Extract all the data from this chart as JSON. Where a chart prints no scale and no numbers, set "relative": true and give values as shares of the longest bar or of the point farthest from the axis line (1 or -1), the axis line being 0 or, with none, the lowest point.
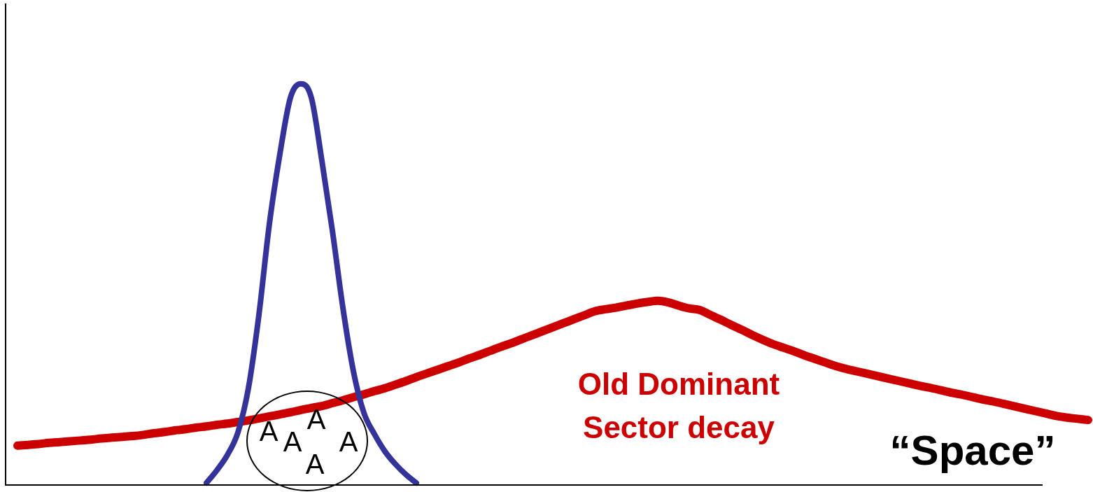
{
  "chart_data": {
    "type": "line",
    "relative": true,
    "xlabel": "“Space”",
    "annotations": [
      "A",
      "A",
      "A",
      "A",
      "A"
    ],
    "categories": [
      null,
      null,
      null,
      null,
      null,
      null,
      null,
      null,
      null,
      null,
      null,
      null,
      null,
      null,
      null,
      null,
      null,
      null,
      null,
      null,
      null,
      null,
      null,
      null,
      null,
      null,
      null,
      null,
      null,
      null,
      null,
      null,
      null,
      null,
      null,
      null,
      null,
      null,
      null,
      null,
      null,
      null,
      null,
      null,
      null,
      null,
      null,
      null,
      null,
      null,
      null,
      null,
      null,
      null,
      null,
      null,
      null,
      null,
      null,
      null,
      null,
      null,
      null,
      null,
      null,
      null,
      null,
      null,
      null,
      null,
      null,
      null,
      null,
      null,
      null,
      null,
      null,
      null,
      null,
      null,
      null,
      null,
      null,
      null,
      null,
      null,
      null,
      null,
      null,
      null,
      null,
      null,
      null,
      null,
      null,
      null,
      null,
      null,
      null,
      null,
      null,
      null,
      null
    ],
    "series": [
      {
        "color": "#333399",
        "values": [
          null,
          null,
          null,
          null,
          null,
          null,
          null,
          null,
          null,
          null,
          null,
          null,
          null,
          null,
          null,
          null,
          null,
          null,
          0.005,
          0.037,
          0.075,
          0.131,
          0.241,
          0.424,
          0.651,
          0.825,
          0.965,
          1,
          0.965,
          0.808,
          0.634,
          0.442,
          0.284,
          0.18,
          0.127,
          0.084,
          0.052,
          0.026,
          0.005,
          null,
          null,
          null,
          null,
          null,
          null,
          null,
          null,
          null,
          null,
          null,
          null,
          null,
          null,
          null,
          null,
          null,
          null,
          null,
          null,
          null,
          null,
          null,
          null,
          null,
          null,
          null,
          null,
          null,
          null,
          null,
          null,
          null,
          null,
          null,
          null,
          null,
          null,
          null,
          null,
          null,
          null,
          null,
          null,
          null,
          null,
          null,
          null,
          null,
          null,
          null,
          null,
          null,
          null,
          null,
          null,
          null,
          null,
          null,
          null,
          null,
          null,
          null,
          null
        ]
      },
      {
        "name": "Old Dominant Sector decay",
        "color": "#cc0000",
        "values": [
          0.098,
          0.1,
          0.102,
          0.105,
          0.107,
          0.109,
          0.111,
          0.113,
          0.116,
          0.118,
          0.12,
          0.122,
          0.125,
          0.129,
          0.132,
          0.136,
          0.139,
          0.143,
          0.146,
          0.15,
          0.153,
          0.157,
          0.161,
          0.166,
          0.171,
          0.176,
          0.181,
          0.187,
          0.192,
          0.197,
          0.204,
          0.211,
          0.219,
          0.226,
          0.234,
          0.241,
          0.25,
          0.259,
          0.269,
          0.278,
          0.287,
          0.296,
          0.305,
          0.315,
          0.324,
          0.334,
          0.344,
          0.353,
          0.363,
          0.373,
          0.383,
          0.393,
          0.403,
          0.413,
          0.423,
          0.433,
          0.438,
          0.442,
          0.447,
          0.452,
          0.456,
          0.459,
          0.455,
          0.447,
          0.44,
          0.436,
          0.424,
          0.412,
          0.399,
          0.387,
          0.374,
          0.362,
          0.351,
          0.342,
          0.333,
          0.323,
          0.314,
          0.305,
          0.296,
          0.289,
          0.283,
          0.277,
          0.271,
          0.265,
          0.259,
          0.253,
          0.247,
          0.242,
          0.236,
          0.23,
          0.225,
          0.219,
          0.213,
          0.208,
          0.202,
          0.196,
          0.19,
          0.184,
          0.178,
          0.172,
          0.168,
          0.165,
          0.162
        ]
      }
    ]
  }
}
